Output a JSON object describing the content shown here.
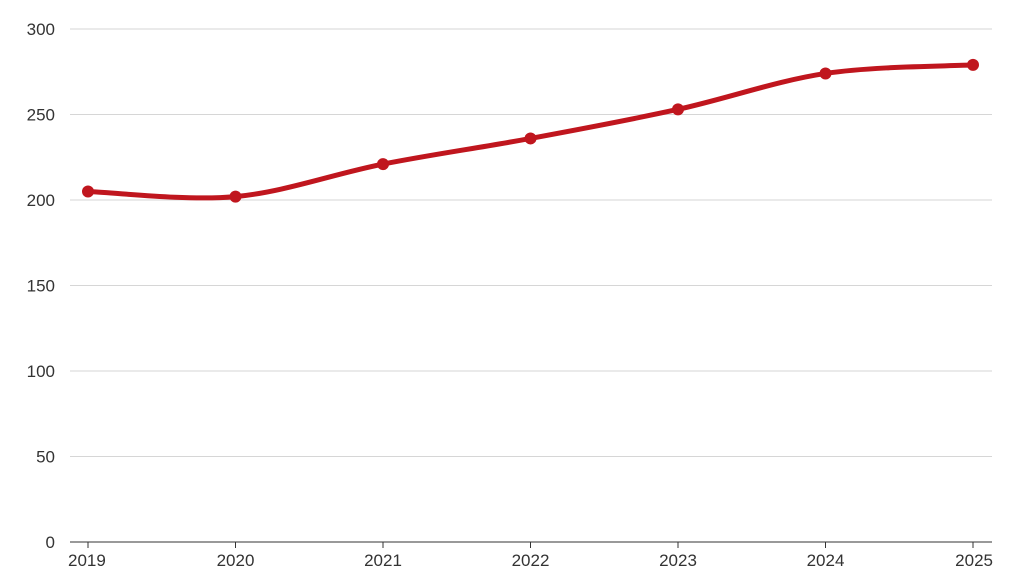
{
  "chart_data": {
    "type": "line",
    "title": "",
    "xlabel": "",
    "ylabel": "",
    "categories": [
      "2019",
      "2020",
      "2021",
      "2022",
      "2023",
      "2024",
      "2025"
    ],
    "series": [
      {
        "values": [
          205,
          202,
          221,
          236,
          253,
          274,
          279
        ]
      }
    ],
    "ylim": [
      0,
      300
    ],
    "yticks": [
      0,
      50,
      100,
      150,
      200,
      250,
      300
    ],
    "grid": true,
    "legend": "none",
    "colors": {
      "line": "#c0161e",
      "grid": "#d6d6d6",
      "axis": "#333333",
      "text": "#333333"
    }
  }
}
